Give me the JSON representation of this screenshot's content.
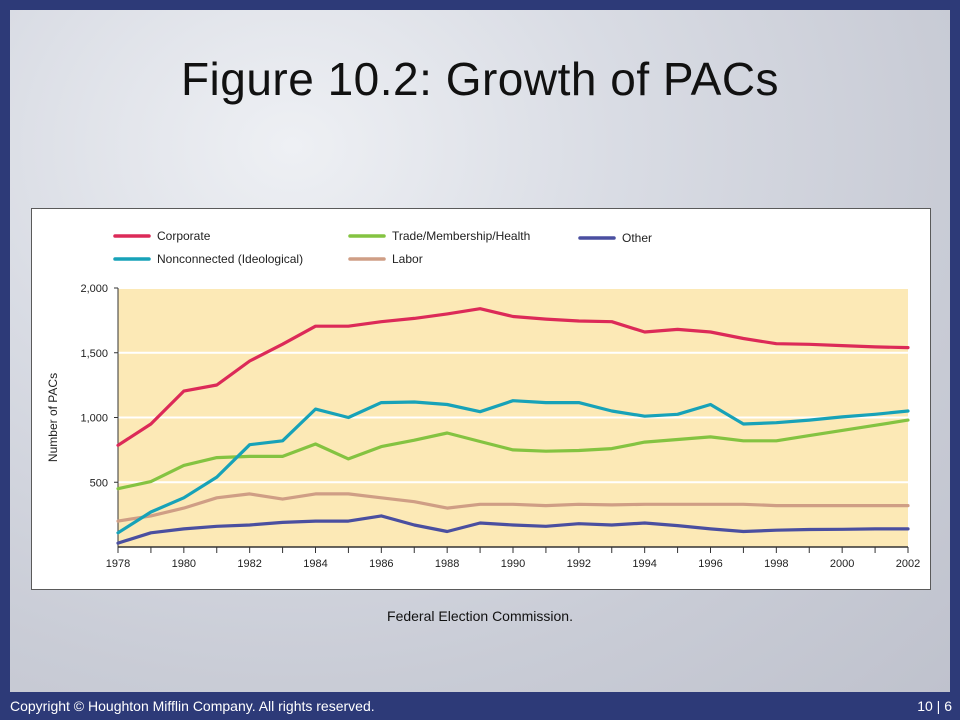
{
  "slide": {
    "title": "Figure 10.2: Growth of PACs",
    "source": "Federal Election Commission.",
    "footer_left": "Copyright © Houghton Mifflin Company. All rights reserved.",
    "footer_right": "10 | 6"
  },
  "colors": {
    "plot_background": "#fce9b6",
    "gridline": "#ffffff",
    "Corporate": "#dc2a58",
    "Nonconnected (Ideological)": "#17a2b8",
    "Trade/Membership/Health": "#84c341",
    "Labor": "#cf9e85",
    "Other": "#4a4fa0"
  },
  "chart_data": {
    "type": "line",
    "title": "",
    "xlabel": "",
    "ylabel": "Number of PACs",
    "xlim": [
      1978,
      2002
    ],
    "ylim": [
      0,
      2000
    ],
    "grid": true,
    "legend_position": "top",
    "x_ticks": [
      1978,
      1980,
      1982,
      1984,
      1986,
      1988,
      1990,
      1992,
      1994,
      1996,
      1998,
      2000,
      2002
    ],
    "y_ticks": [
      500,
      1000,
      1500,
      2000
    ],
    "y_tick_labels": [
      "500",
      "1,000",
      "1,500",
      "2,000"
    ],
    "x": [
      1978,
      1979,
      1980,
      1981,
      1982,
      1983,
      1984,
      1985,
      1986,
      1987,
      1988,
      1989,
      1990,
      1991,
      1992,
      1993,
      1994,
      1995,
      1996,
      1997,
      1998,
      1999,
      2000,
      2001,
      2002
    ],
    "series": [
      {
        "name": "Corporate",
        "values": [
          785,
          950,
          1204,
          1251,
          1436,
          1566,
          1705,
          1705,
          1740,
          1765,
          1800,
          1840,
          1780,
          1760,
          1745,
          1740,
          1660,
          1680,
          1660,
          1610,
          1570,
          1565,
          1555,
          1545,
          1540
        ]
      },
      {
        "name": "Trade/Membership/Health",
        "values": [
          450,
          505,
          630,
          690,
          700,
          700,
          795,
          680,
          775,
          825,
          880,
          815,
          750,
          740,
          745,
          760,
          810,
          830,
          850,
          820,
          820,
          860,
          900,
          940,
          980
        ]
      },
      {
        "name": "Other",
        "values": [
          30,
          110,
          140,
          160,
          170,
          190,
          200,
          200,
          240,
          170,
          120,
          185,
          170,
          160,
          180,
          170,
          185,
          165,
          140,
          120,
          130,
          135,
          137,
          140,
          140
        ]
      },
      {
        "name": "Nonconnected (Ideological)",
        "values": [
          110,
          270,
          380,
          540,
          790,
          820,
          1065,
          1000,
          1115,
          1120,
          1100,
          1045,
          1130,
          1115,
          1115,
          1050,
          1010,
          1025,
          1100,
          950,
          960,
          980,
          1005,
          1025,
          1050
        ]
      },
      {
        "name": "Labor",
        "values": [
          200,
          240,
          300,
          380,
          410,
          370,
          410,
          410,
          380,
          350,
          300,
          330,
          330,
          320,
          330,
          325,
          330,
          330,
          330,
          330,
          320,
          320,
          320,
          320,
          320
        ]
      }
    ]
  }
}
